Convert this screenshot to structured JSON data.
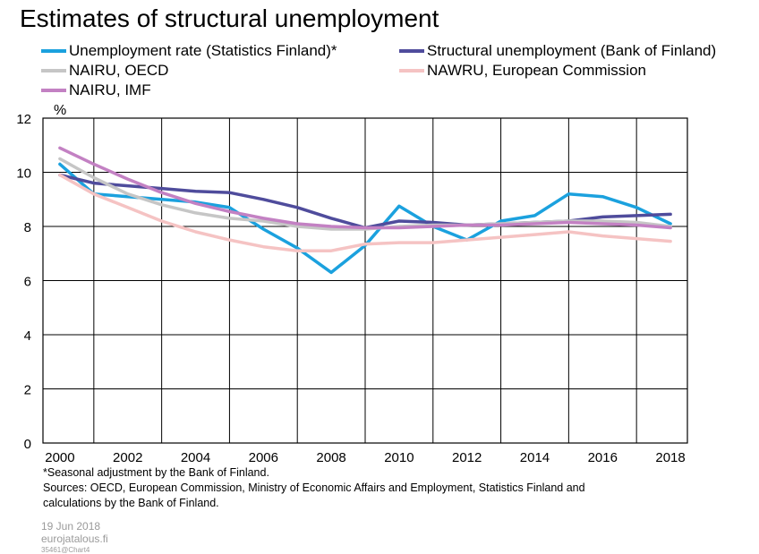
{
  "chart_data": {
    "type": "line",
    "title": "Estimates of structural unemployment",
    "ylabel": "%",
    "xlabel": "",
    "xlim": [
      1999.5,
      2018.5
    ],
    "ylim": [
      0,
      12
    ],
    "grid": true,
    "legend_position": "top",
    "x_ticks": [
      "2000",
      "2002",
      "2004",
      "2006",
      "2008",
      "2010",
      "2012",
      "2014",
      "2016",
      "2018"
    ],
    "y_ticks": [
      "0",
      "2",
      "4",
      "6",
      "8",
      "10",
      "12"
    ],
    "series": [
      {
        "name": "Unemployment rate (Statistics Finland)*",
        "color": "#1ba1de",
        "x": [
          2000,
          2001,
          2002,
          2003,
          2004,
          2005,
          2006,
          2007,
          2008,
          2009,
          2010,
          2011,
          2012,
          2013,
          2014,
          2015,
          2016,
          2017,
          2018
        ],
        "y": [
          10.3,
          9.2,
          9.1,
          9.0,
          8.9,
          8.7,
          7.9,
          7.2,
          6.3,
          7.3,
          8.75,
          8.0,
          7.5,
          8.2,
          8.4,
          9.2,
          9.1,
          8.7,
          8.1
        ]
      },
      {
        "name": "Structural unemployment (Bank of Finland)",
        "color": "#4f4c9c",
        "x": [
          2000,
          2001,
          2002,
          2003,
          2004,
          2005,
          2006,
          2007,
          2008,
          2009,
          2010,
          2011,
          2012,
          2013,
          2014,
          2015,
          2016,
          2017,
          2018
        ],
        "y": [
          9.9,
          9.6,
          9.5,
          9.4,
          9.3,
          9.25,
          9.0,
          8.7,
          8.3,
          7.95,
          8.2,
          8.15,
          8.05,
          8.1,
          8.15,
          8.2,
          8.35,
          8.4,
          8.45
        ]
      },
      {
        "name": "NAIRU, OECD",
        "color": "#c6c6c6",
        "x": [
          2000,
          2001,
          2002,
          2003,
          2004,
          2005,
          2006,
          2007,
          2008,
          2009,
          2010,
          2011,
          2012,
          2013,
          2014,
          2015,
          2016,
          2017,
          2018
        ],
        "y": [
          10.5,
          9.8,
          9.2,
          8.8,
          8.5,
          8.3,
          8.2,
          8.0,
          7.9,
          7.9,
          8.0,
          8.05,
          8.05,
          8.1,
          8.15,
          8.2,
          8.2,
          8.15,
          8.0
        ]
      },
      {
        "name": "NAWRU, European Commission",
        "color": "#f5c3c3",
        "x": [
          2000,
          2001,
          2002,
          2003,
          2004,
          2005,
          2006,
          2007,
          2008,
          2009,
          2010,
          2011,
          2012,
          2013,
          2014,
          2015,
          2016,
          2017,
          2018
        ],
        "y": [
          9.9,
          9.2,
          8.7,
          8.2,
          7.8,
          7.5,
          7.25,
          7.1,
          7.1,
          7.35,
          7.4,
          7.4,
          7.5,
          7.6,
          7.7,
          7.8,
          7.65,
          7.55,
          7.45
        ]
      },
      {
        "name": "NAIRU, IMF",
        "color": "#c381c3",
        "x": [
          2000,
          2001,
          2002,
          2003,
          2004,
          2005,
          2006,
          2007,
          2008,
          2009,
          2010,
          2011,
          2012,
          2013,
          2014,
          2015,
          2016,
          2017,
          2018
        ],
        "y": [
          10.9,
          10.3,
          9.75,
          9.25,
          8.85,
          8.55,
          8.3,
          8.1,
          8.0,
          7.95,
          7.95,
          8.0,
          8.05,
          8.05,
          8.1,
          8.15,
          8.1,
          8.05,
          7.95
        ]
      }
    ]
  },
  "footnotes": [
    "*Seasonal adjustment by the Bank of Finland.",
    "Sources: OECD, European Commission, Ministry of Economic Affairs and Employment, Statistics Finland and",
    "calculations by the Bank of Finland."
  ],
  "meta": {
    "date": "19 Jun 2018",
    "site": "eurojatalous.fi",
    "code": "35461@Chart4"
  }
}
